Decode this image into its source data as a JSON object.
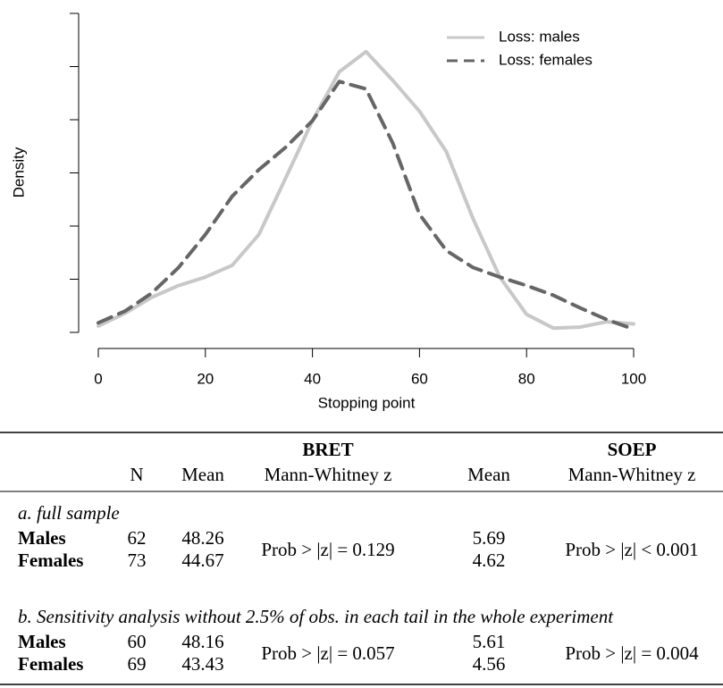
{
  "chart_data": {
    "type": "line",
    "x_label": "Stopping point",
    "y_label": "Density",
    "x": [
      0,
      5,
      10,
      15,
      20,
      25,
      30,
      35,
      40,
      45,
      50,
      55,
      60,
      65,
      70,
      75,
      80,
      85,
      90,
      95,
      100
    ],
    "series": [
      {
        "name": "Loss: males",
        "color": "#c8c8c8",
        "dash": false,
        "values": [
          0.0006,
          0.0018,
          0.0033,
          0.0044,
          0.0052,
          0.0063,
          0.0092,
          0.0145,
          0.0199,
          0.0245,
          0.0264,
          0.0237,
          0.0208,
          0.017,
          0.0107,
          0.0052,
          0.0017,
          0.0004,
          0.0005,
          0.001,
          0.0008
        ]
      },
      {
        "name": "Loss: females",
        "color": "#666666",
        "dash": true,
        "values": [
          0.0009,
          0.002,
          0.0037,
          0.0061,
          0.0092,
          0.0128,
          0.0153,
          0.0174,
          0.0199,
          0.0236,
          0.0229,
          0.0178,
          0.0111,
          0.0077,
          0.0061,
          0.0052,
          0.0044,
          0.0035,
          0.0023,
          0.0012,
          0.0003
        ]
      }
    ],
    "xlim": [
      0,
      100
    ],
    "xticks": [
      0,
      20,
      40,
      60,
      80,
      100
    ],
    "ylim": [
      0,
      0.03
    ],
    "yticks": [
      0,
      0.005,
      0.01,
      0.015,
      0.02,
      0.025,
      0.03
    ],
    "legend": "top-right"
  },
  "table": {
    "groups": [
      "BRET",
      "SOEP"
    ],
    "columns": [
      "N",
      "Mean",
      "Mann-Whitney z",
      "Mean",
      "Mann-Whitney z"
    ],
    "sections": [
      {
        "label": "a. full sample",
        "rows": [
          [
            "Males",
            62,
            48.26,
            5.69
          ],
          [
            "Females",
            73,
            44.67,
            4.62
          ]
        ],
        "bret_test": "Prob > |z| = 0.129",
        "soep_test": "Prob > |z| < 0.001"
      },
      {
        "label": "b. Sensitivity analysis without 2.5% of obs. in each tail in the whole experiment",
        "rows": [
          [
            "Males",
            60,
            48.16,
            5.61
          ],
          [
            "Females",
            69,
            43.43,
            4.56
          ]
        ],
        "bret_test": "Prob > |z| = 0.057",
        "soep_test": "Prob > |z| = 0.004"
      }
    ]
  }
}
